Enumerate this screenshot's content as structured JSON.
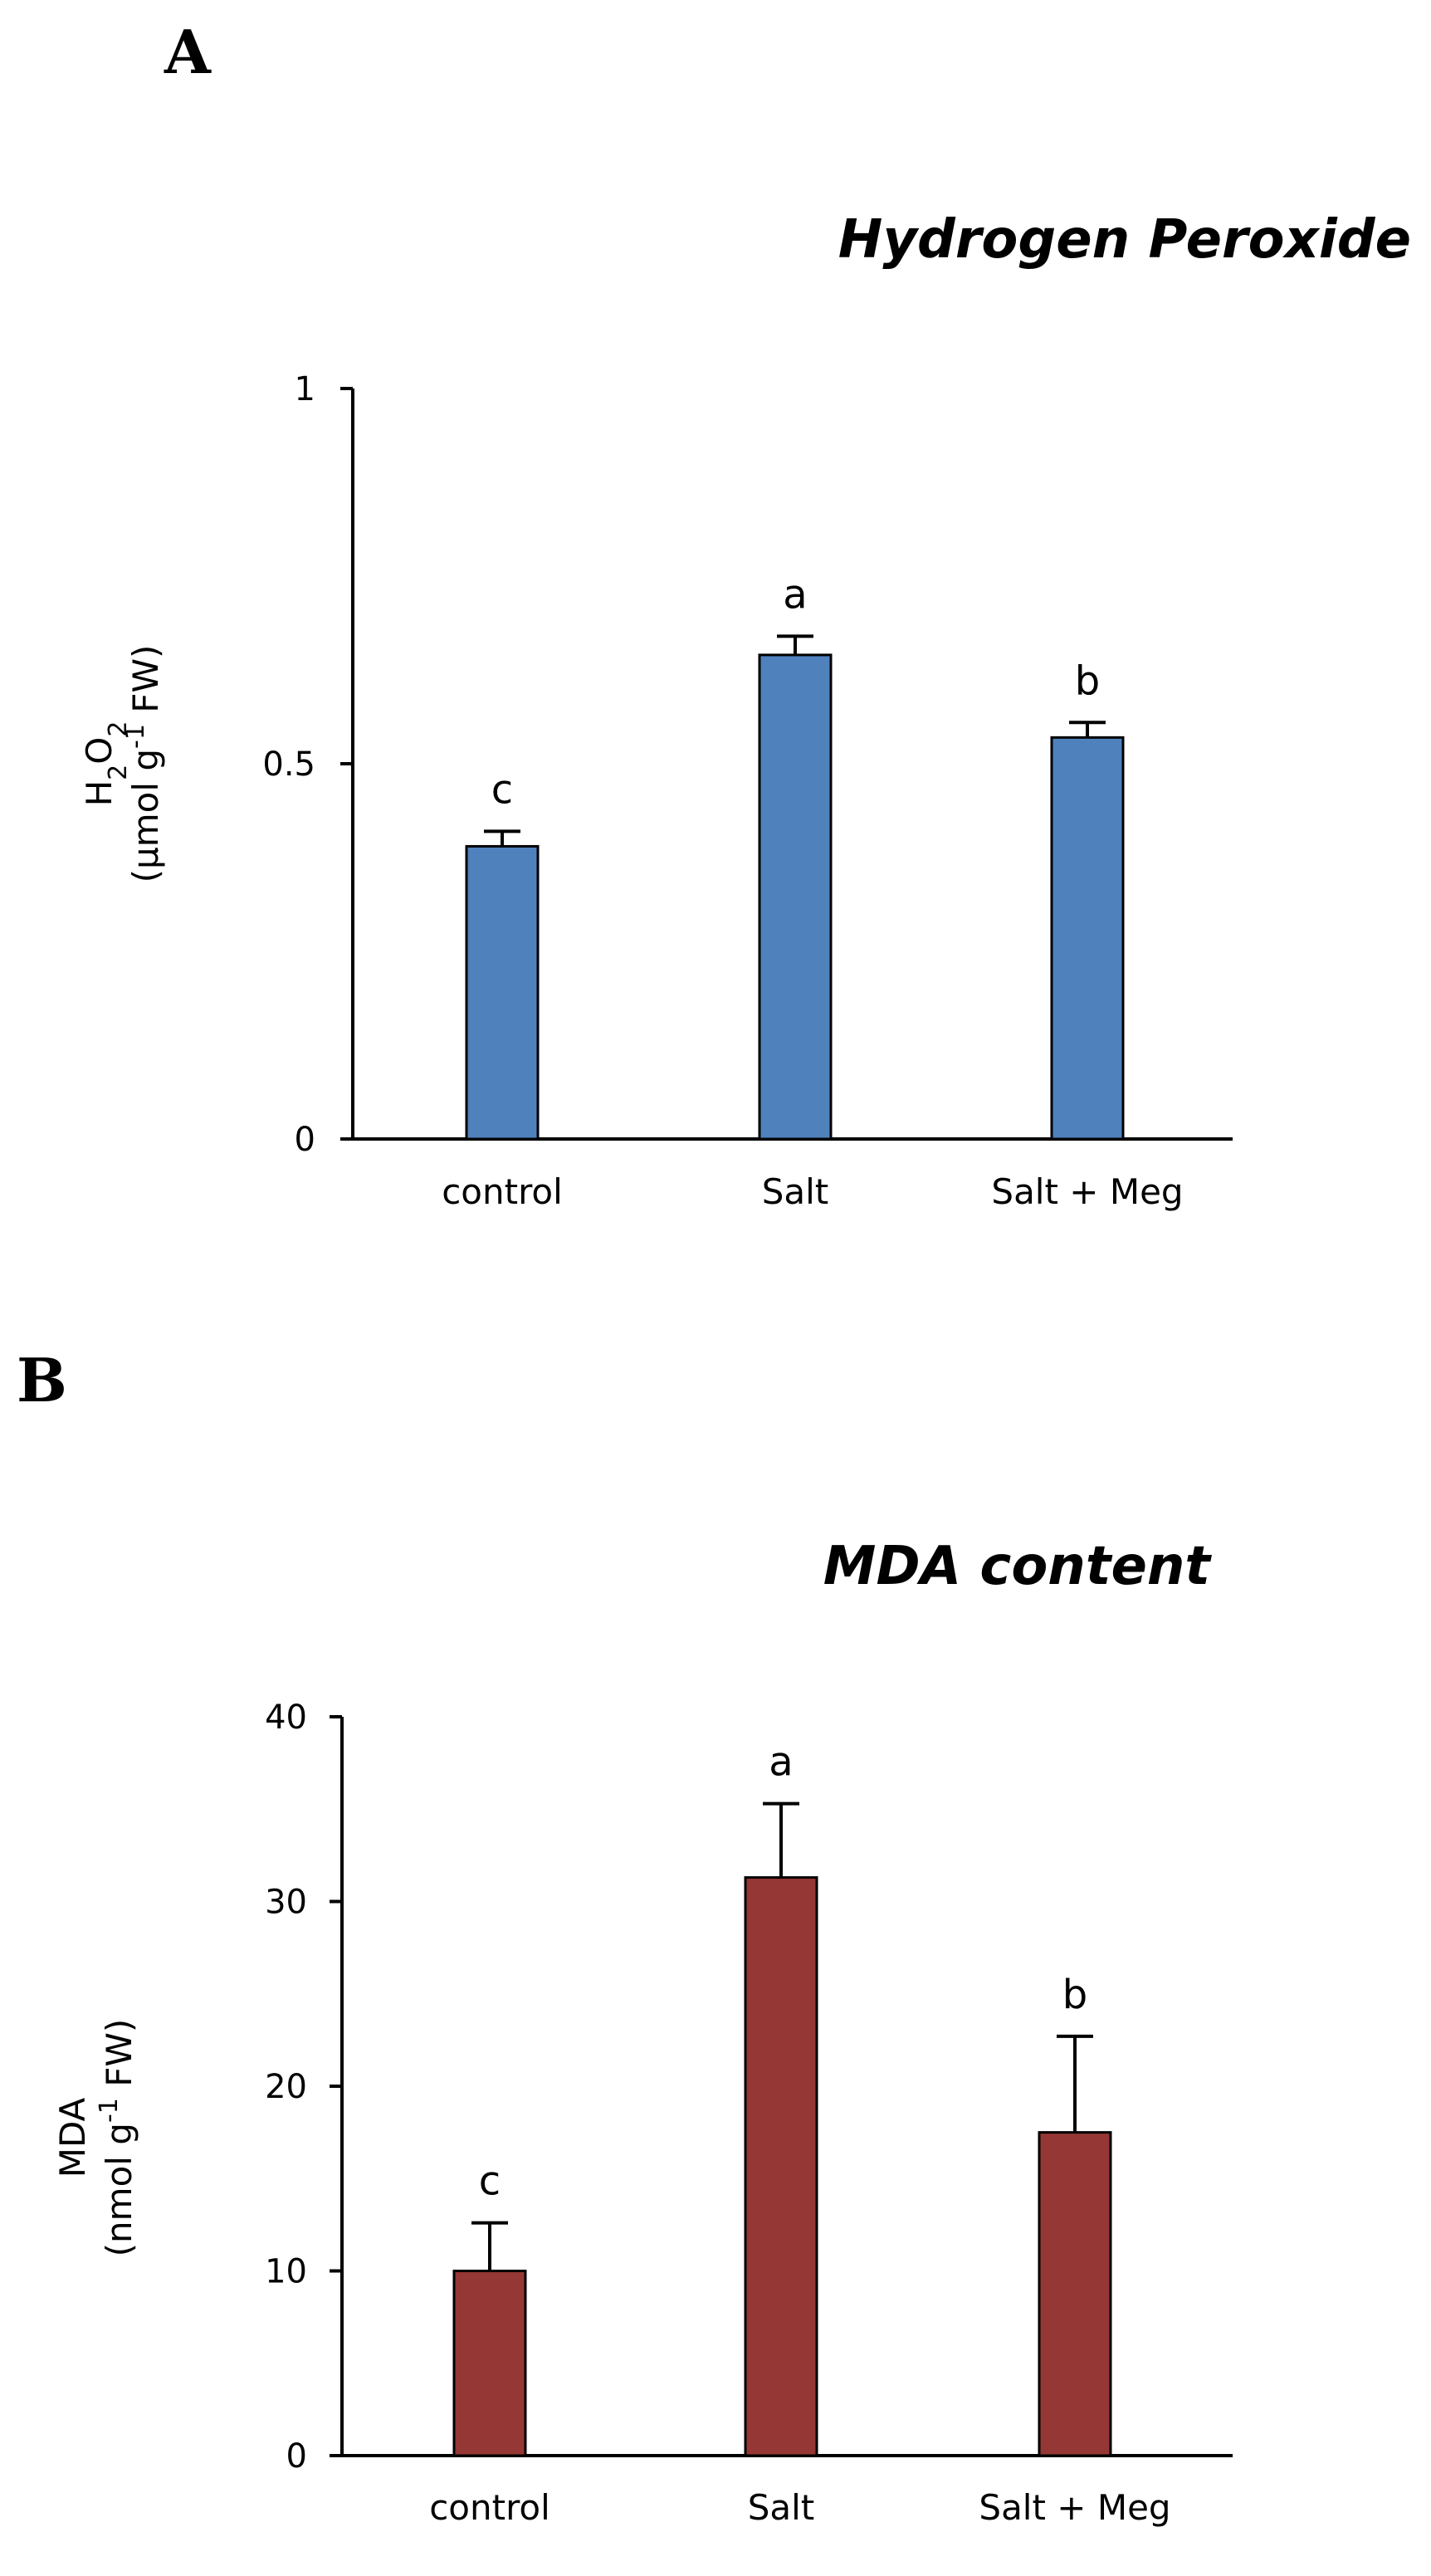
{
  "chart_data": [
    {
      "type": "bar",
      "panel": "A",
      "title": "Hydrogen Peroxide",
      "ylabel_line1_main": "H",
      "ylabel_line1_sub1": "2",
      "ylabel_line1_mid": "O",
      "ylabel_line1_sub2": "2",
      "ylabel_line2_pre": "(μmol g",
      "ylabel_line2_sup": "-1",
      "ylabel_line2_post": " FW)",
      "categories": [
        "control",
        "Salt",
        "Salt + Meg"
      ],
      "values": [
        0.39,
        0.645,
        0.535
      ],
      "errors": [
        0.02,
        0.025,
        0.02
      ],
      "significance": [
        "c",
        "a",
        "b"
      ],
      "ylim": [
        0,
        1
      ],
      "yticks": [
        0,
        0.5,
        1
      ],
      "ytick_labels": [
        "0",
        "0.5",
        "1"
      ],
      "bar_color": "#4F81BD"
    },
    {
      "type": "bar",
      "panel": "B",
      "title": "MDA content",
      "ylabel_line1": "MDA",
      "ylabel_line2_pre": "(nmol g",
      "ylabel_line2_sup": "-1",
      "ylabel_line2_post": " FW)",
      "categories": [
        "control",
        "Salt",
        "Salt + Meg"
      ],
      "values": [
        10,
        31.3,
        17.5
      ],
      "errors": [
        2.6,
        4,
        5.2
      ],
      "significance": [
        "c",
        "a",
        "b"
      ],
      "ylim": [
        0,
        40
      ],
      "yticks": [
        0,
        10,
        20,
        30,
        40
      ],
      "ytick_labels": [
        "0",
        "10",
        "20",
        "30",
        "40"
      ],
      "bar_color": "#953735"
    }
  ]
}
